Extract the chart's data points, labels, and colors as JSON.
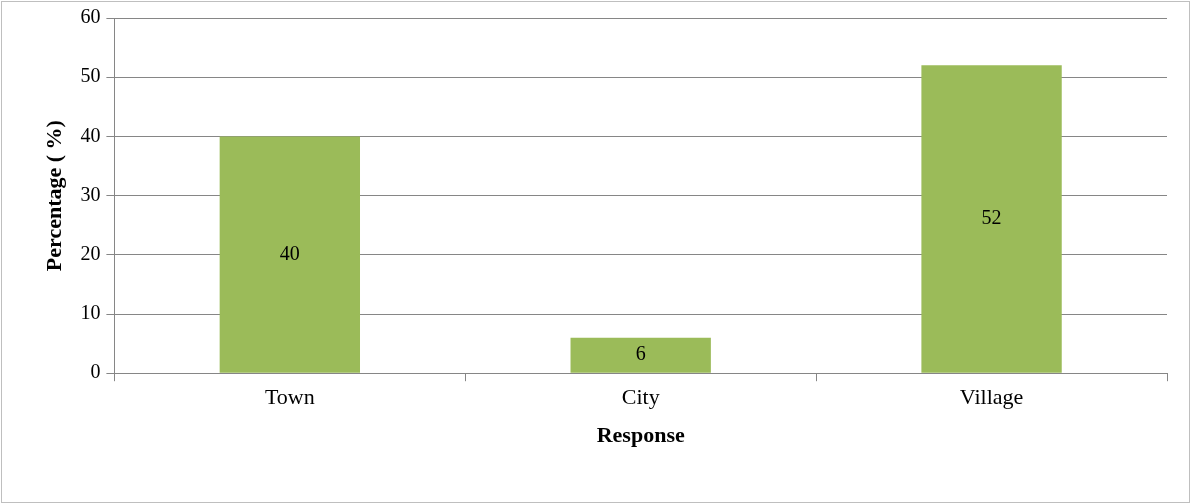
{
  "chart_data": {
    "type": "bar",
    "xlabel": "Response",
    "ylabel": "Percentage ( %)",
    "categories": [
      "Town",
      "City",
      "Village"
    ],
    "values": [
      40,
      6,
      52
    ],
    "color": "#9bbb59",
    "ylim": [
      0,
      60
    ],
    "yticks": [
      0,
      10,
      20,
      30,
      40,
      50,
      60
    ],
    "grid": "y",
    "data_labels": true
  }
}
